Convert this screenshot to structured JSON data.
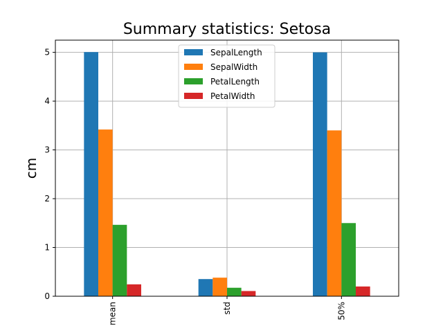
{
  "chart_data": {
    "type": "bar",
    "title": "Summary statistics: Setosa",
    "xlabel": "",
    "ylabel": "cm",
    "categories": [
      "mean",
      "std",
      "50%"
    ],
    "ylim": [
      0,
      5.25
    ],
    "yticks": [
      0,
      1,
      2,
      3,
      4,
      5
    ],
    "grid": true,
    "legend_position": "top-center",
    "series": [
      {
        "name": "SepalLength",
        "color": "#1f77b4",
        "values": [
          5.006,
          0.352,
          5.0
        ]
      },
      {
        "name": "SepalWidth",
        "color": "#ff7f0e",
        "values": [
          3.418,
          0.381,
          3.4
        ]
      },
      {
        "name": "PetalLength",
        "color": "#2ca02c",
        "values": [
          1.464,
          0.174,
          1.5
        ]
      },
      {
        "name": "PetalWidth",
        "color": "#d62728",
        "values": [
          0.244,
          0.107,
          0.2
        ]
      }
    ]
  }
}
